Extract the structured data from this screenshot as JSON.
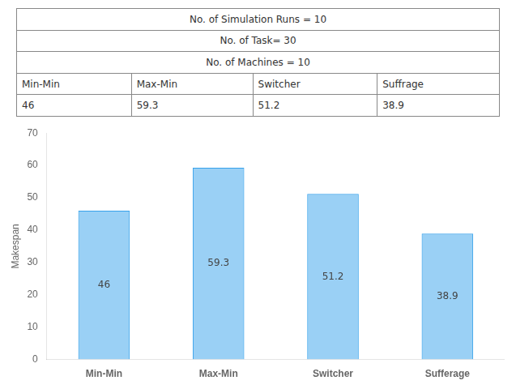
{
  "chart_data": [
    {
      "type": "table",
      "annotations": [
        "No. of Simulation Runs = 10",
        "No. of Task= 30",
        "No. of Machines = 10"
      ],
      "categories": [
        "Min-Min",
        "Max-Min",
        "Switcher",
        "Suffrage"
      ],
      "values": [
        46,
        59.3,
        51.2,
        38.9
      ]
    },
    {
      "type": "bar",
      "categories": [
        "Min-Min",
        "Max-Min",
        "Switcher",
        "Sufferage"
      ],
      "values": [
        46,
        59.3,
        51.2,
        38.9
      ],
      "ylabel": "Makespan",
      "ylim": [
        0,
        70
      ],
      "yticks": [
        0,
        10,
        20,
        30,
        40,
        50,
        60,
        70
      ],
      "grid": false,
      "data_labels": true
    }
  ]
}
